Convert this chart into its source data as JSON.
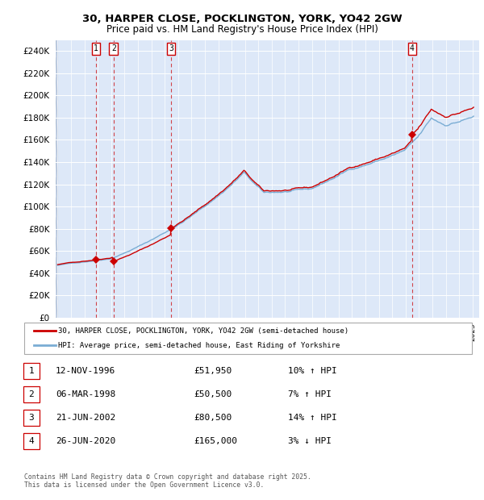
{
  "title_line1": "30, HARPER CLOSE, POCKLINGTON, YORK, YO42 2GW",
  "title_line2": "Price paid vs. HM Land Registry's House Price Index (HPI)",
  "ylim": [
    0,
    250000
  ],
  "yticks": [
    0,
    20000,
    40000,
    60000,
    80000,
    100000,
    120000,
    140000,
    160000,
    180000,
    200000,
    220000,
    240000
  ],
  "red_color": "#cc0000",
  "blue_color": "#7aadd4",
  "bg_plot": "#dde8f8",
  "bg_left": "#c8d4e8",
  "grid_color": "#ffffff",
  "sale_dates_decimal": [
    1996.87,
    1998.18,
    2002.47,
    2020.49
  ],
  "sale_prices": [
    51950,
    50500,
    80500,
    165000
  ],
  "sale_labels": [
    "1",
    "2",
    "3",
    "4"
  ],
  "legend_label_red": "30, HARPER CLOSE, POCKLINGTON, YORK, YO42 2GW (semi-detached house)",
  "legend_label_blue": "HPI: Average price, semi-detached house, East Riding of Yorkshire",
  "table_rows": [
    [
      "1",
      "12-NOV-1996",
      "£51,950",
      "10% ↑ HPI"
    ],
    [
      "2",
      "06-MAR-1998",
      "£50,500",
      "7% ↑ HPI"
    ],
    [
      "3",
      "21-JUN-2002",
      "£80,500",
      "14% ↑ HPI"
    ],
    [
      "4",
      "26-JUN-2020",
      "£165,000",
      "3% ↓ HPI"
    ]
  ],
  "footnote": "Contains HM Land Registry data © Crown copyright and database right 2025.\nThis data is licensed under the Open Government Licence v3.0.",
  "xlim_left": 1994.0,
  "xlim_right": 2025.5
}
